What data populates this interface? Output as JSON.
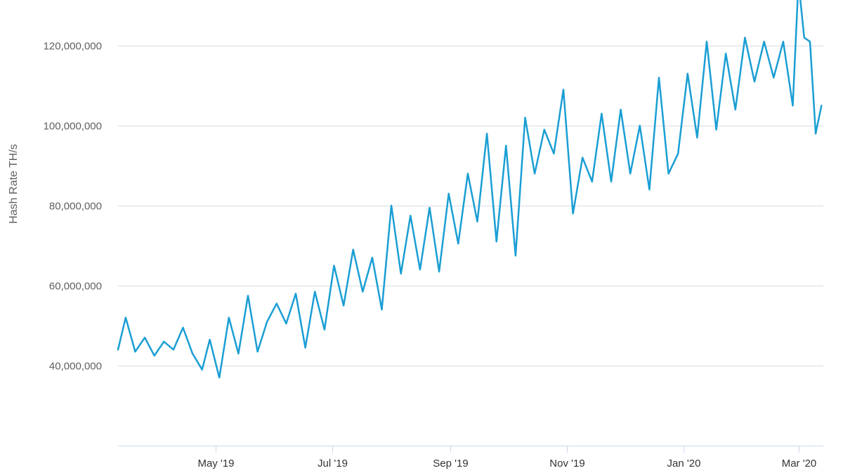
{
  "chart_data": {
    "type": "line",
    "title": "",
    "xlabel": "",
    "ylabel": "Hash Rate TH/s",
    "grid": true,
    "legend": "none",
    "line_color": "#1a9ed4",
    "x_range": [
      "2019-03-11",
      "2020-03-14"
    ],
    "ylim": [
      20000000,
      130000000
    ],
    "y_ticks": [
      {
        "value": 40000000,
        "label": "40,000,000"
      },
      {
        "value": 60000000,
        "label": "60,000,000"
      },
      {
        "value": 80000000,
        "label": "80,000,000"
      },
      {
        "value": 100000000,
        "label": "100,000,000"
      },
      {
        "value": 120000000,
        "label": "120,000,000"
      }
    ],
    "x_ticks": [
      {
        "date": "2019-05-01",
        "label": "May '19"
      },
      {
        "date": "2019-07-01",
        "label": "Jul '19"
      },
      {
        "date": "2019-09-01",
        "label": "Sep '19"
      },
      {
        "date": "2019-11-01",
        "label": "Nov '19"
      },
      {
        "date": "2020-01-01",
        "label": "Jan '20"
      },
      {
        "date": "2020-03-01",
        "label": "Mar '20"
      }
    ],
    "series": [
      {
        "x": [
          "2019-03-11",
          "2019-03-15",
          "2019-03-20",
          "2019-03-25",
          "2019-03-30",
          "2019-04-04",
          "2019-04-09",
          "2019-04-14",
          "2019-04-19",
          "2019-04-24",
          "2019-04-28",
          "2019-05-03",
          "2019-05-08",
          "2019-05-13",
          "2019-05-18",
          "2019-05-23",
          "2019-05-28",
          "2019-06-02",
          "2019-06-07",
          "2019-06-12",
          "2019-06-17",
          "2019-06-22",
          "2019-06-27",
          "2019-07-02",
          "2019-07-07",
          "2019-07-12",
          "2019-07-17",
          "2019-07-22",
          "2019-07-27",
          "2019-08-01",
          "2019-08-06",
          "2019-08-11",
          "2019-08-16",
          "2019-08-21",
          "2019-08-26",
          "2019-08-31",
          "2019-09-05",
          "2019-09-10",
          "2019-09-15",
          "2019-09-20",
          "2019-09-25",
          "2019-09-30",
          "2019-10-05",
          "2019-10-10",
          "2019-10-15",
          "2019-10-20",
          "2019-10-25",
          "2019-10-30",
          "2019-11-04",
          "2019-11-09",
          "2019-11-14",
          "2019-11-19",
          "2019-11-24",
          "2019-11-29",
          "2019-12-04",
          "2019-12-09",
          "2019-12-14",
          "2019-12-19",
          "2019-12-24",
          "2019-12-29",
          "2020-01-03",
          "2020-01-08",
          "2020-01-13",
          "2020-01-18",
          "2020-01-23",
          "2020-01-28",
          "2020-02-02",
          "2020-02-07",
          "2020-02-12",
          "2020-02-17",
          "2020-02-22",
          "2020-02-27",
          "2020-03-01",
          "2020-03-04",
          "2020-03-07",
          "2020-03-10",
          "2020-03-13"
        ],
        "values": [
          44000000,
          52000000,
          43500000,
          47000000,
          42500000,
          46000000,
          44000000,
          49500000,
          43000000,
          39000000,
          46500000,
          37000000,
          52000000,
          43000000,
          57500000,
          43500000,
          51000000,
          55500000,
          50500000,
          58000000,
          44500000,
          58500000,
          49000000,
          65000000,
          55000000,
          69000000,
          58500000,
          67000000,
          54000000,
          80000000,
          63000000,
          77500000,
          64000000,
          79500000,
          63500000,
          83000000,
          70500000,
          88000000,
          76000000,
          98000000,
          71000000,
          95000000,
          67500000,
          102000000,
          88000000,
          99000000,
          93000000,
          109000000,
          78000000,
          92000000,
          86000000,
          103000000,
          86000000,
          104000000,
          88000000,
          100000000,
          84000000,
          112000000,
          88000000,
          93000000,
          113000000,
          97000000,
          121000000,
          99000000,
          118000000,
          104000000,
          122000000,
          111000000,
          121000000,
          112000000,
          121000000,
          105000000,
          136000000,
          122000000,
          121000000,
          98000000,
          105000000
        ]
      }
    ]
  }
}
